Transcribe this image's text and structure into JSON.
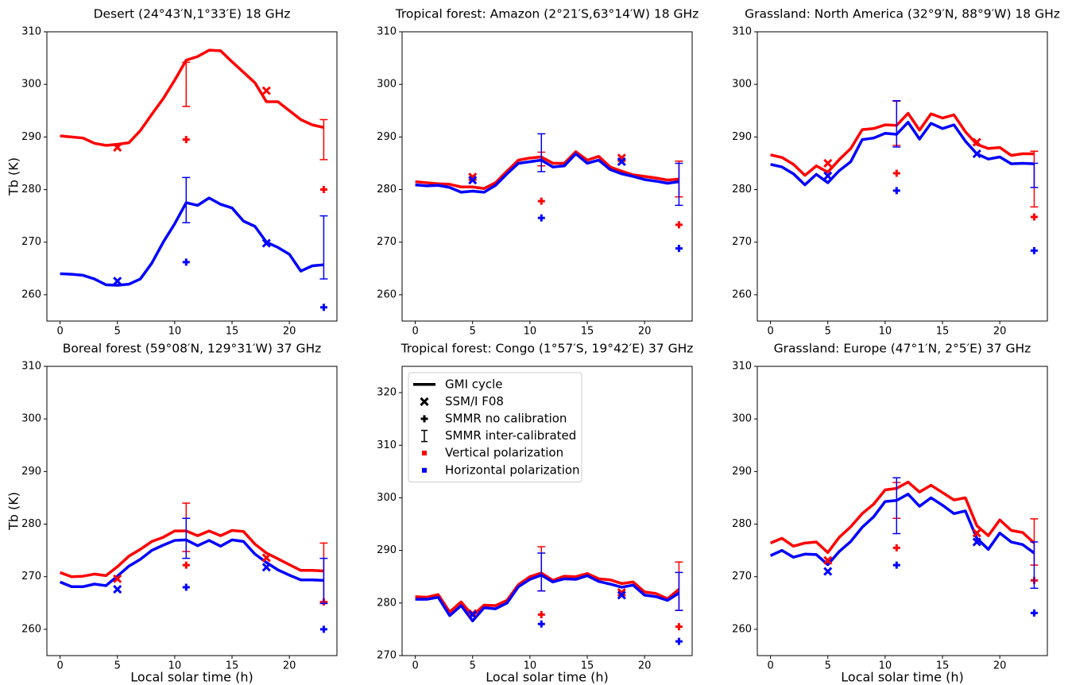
{
  "chart_data": [
    {
      "type": "line",
      "title": "Desert (24°43′N,1°33′E) 18 GHz",
      "ylabel": "Tb (K)",
      "x": [
        0,
        1,
        2,
        3,
        4,
        5,
        6,
        7,
        8,
        9,
        10,
        11,
        12,
        13,
        14,
        15,
        16,
        17,
        18,
        19,
        20,
        21,
        22,
        23
      ],
      "series": [
        {
          "color": "#ff0000",
          "values": [
            290.2,
            290.0,
            289.8,
            288.8,
            288.4,
            288.6,
            288.9,
            291.2,
            294.3,
            297.3,
            300.8,
            304.6,
            305.3,
            306.5,
            306.4,
            304.3,
            302.3,
            300.3,
            296.7,
            296.7,
            295.0,
            293.3,
            292.3,
            291.8
          ]
        },
        {
          "color": "#0000ff",
          "values": [
            264.0,
            263.9,
            263.7,
            263.0,
            261.9,
            261.8,
            262.0,
            263.0,
            266.0,
            270.0,
            273.5,
            277.5,
            277.0,
            278.4,
            277.2,
            276.5,
            274.0,
            273.0,
            270.0,
            269.0,
            267.7,
            264.5,
            265.5,
            265.7
          ]
        }
      ],
      "ssmi": {
        "x": [
          5,
          18
        ],
        "series": [
          {
            "color": "#ff0000",
            "values": [
              288.0,
              298.8
            ]
          },
          {
            "color": "#0000ff",
            "values": [
              262.6,
              269.8
            ]
          }
        ]
      },
      "smmr": {
        "x": [
          11,
          23
        ],
        "series": [
          {
            "color": "#ff0000",
            "values": [
              289.5,
              280.0
            ]
          },
          {
            "color": "#0000ff",
            "values": [
              266.2,
              257.6
            ]
          }
        ]
      },
      "smmr_cal": {
        "x": [
          11,
          23
        ],
        "series": [
          {
            "color": "#ff0000",
            "values": [
              300.0,
              289.5
            ],
            "errors": [
              4.2,
              3.8
            ]
          },
          {
            "color": "#0000ff",
            "values": [
              278.0,
              269.0
            ],
            "errors": [
              4.3,
              6.0
            ]
          }
        ]
      },
      "xlim": [
        -1.15,
        24.15
      ],
      "ylim": [
        255,
        310
      ],
      "xticks": [
        0,
        5,
        10,
        15,
        20
      ],
      "yticks": [
        260,
        270,
        280,
        290,
        300,
        310
      ]
    },
    {
      "type": "line",
      "title": "Tropical forest: Amazon (2°21′S,63°14′W) 18 GHz",
      "x": [
        0,
        1,
        2,
        3,
        4,
        5,
        6,
        7,
        8,
        9,
        10,
        11,
        12,
        13,
        14,
        15,
        16,
        17,
        18,
        19,
        20,
        21,
        22,
        23
      ],
      "series": [
        {
          "color": "#ff0000",
          "values": [
            281.5,
            281.3,
            281.1,
            281.0,
            280.5,
            280.5,
            280.2,
            281.3,
            283.5,
            285.6,
            286.0,
            286.2,
            285.0,
            285.0,
            287.2,
            285.6,
            286.3,
            284.3,
            283.5,
            282.8,
            282.5,
            282.2,
            281.8,
            282.0
          ]
        },
        {
          "color": "#0000ff",
          "values": [
            280.9,
            280.7,
            280.8,
            280.4,
            279.5,
            279.7,
            279.5,
            280.8,
            283.0,
            285.0,
            285.3,
            285.6,
            284.3,
            284.5,
            286.8,
            285.0,
            285.6,
            283.8,
            283.0,
            282.5,
            281.9,
            281.6,
            281.2,
            281.5
          ]
        }
      ],
      "ssmi": {
        "x": [
          5,
          18
        ],
        "series": [
          {
            "color": "#ff0000",
            "values": [
              282.4,
              286.0
            ]
          },
          {
            "color": "#0000ff",
            "values": [
              281.8,
              285.3
            ]
          }
        ]
      },
      "smmr": {
        "x": [
          11,
          23
        ],
        "series": [
          {
            "color": "#ff0000",
            "values": [
              277.8,
              273.3
            ]
          },
          {
            "color": "#0000ff",
            "values": [
              274.6,
              268.8
            ]
          }
        ]
      },
      "smmr_cal": {
        "x": [
          11,
          23
        ],
        "series": [
          {
            "color": "#ff0000",
            "values": [
              285.8,
              282.0
            ],
            "errors": [
              1.3,
              3.4
            ]
          },
          {
            "color": "#0000ff",
            "values": [
              287.0,
              281.0
            ],
            "errors": [
              3.6,
              4.0
            ]
          }
        ]
      },
      "xlim": [
        -1.15,
        24.15
      ],
      "ylim": [
        255,
        310
      ],
      "xticks": [
        0,
        5,
        10,
        15,
        20
      ],
      "yticks": [
        260,
        270,
        280,
        290,
        300,
        310
      ]
    },
    {
      "type": "line",
      "title": "Grassland: North America (32°9′N, 88°9′W) 18 GHz",
      "x": [
        0,
        1,
        2,
        3,
        4,
        5,
        6,
        7,
        8,
        9,
        10,
        11,
        12,
        13,
        14,
        15,
        16,
        17,
        18,
        19,
        20,
        21,
        22,
        23
      ],
      "series": [
        {
          "color": "#ff0000",
          "values": [
            286.6,
            286.1,
            284.8,
            282.7,
            284.5,
            283.3,
            285.7,
            287.8,
            291.4,
            291.6,
            292.3,
            292.2,
            294.5,
            291.3,
            294.4,
            293.6,
            294.2,
            291.0,
            288.6,
            287.8,
            288.0,
            286.5,
            286.8,
            286.8
          ]
        },
        {
          "color": "#0000ff",
          "values": [
            284.8,
            284.3,
            283.0,
            280.9,
            282.9,
            281.3,
            283.6,
            285.3,
            289.5,
            289.8,
            290.7,
            290.5,
            292.8,
            289.6,
            292.6,
            291.6,
            292.3,
            289.2,
            286.8,
            285.8,
            286.2,
            284.9,
            285.0,
            284.9
          ]
        }
      ],
      "ssmi": {
        "x": [
          5,
          18
        ],
        "series": [
          {
            "color": "#ff0000",
            "values": [
              285.0,
              289.0
            ]
          },
          {
            "color": "#0000ff",
            "values": [
              282.6,
              286.8
            ]
          }
        ]
      },
      "smmr": {
        "x": [
          11,
          23
        ],
        "series": [
          {
            "color": "#ff0000",
            "values": [
              283.1,
              274.8
            ]
          },
          {
            "color": "#0000ff",
            "values": [
              279.8,
              268.4
            ]
          }
        ]
      },
      "smmr_cal": {
        "x": [
          11,
          23
        ],
        "series": [
          {
            "color": "#ff0000",
            "values": [
              292.6,
              282.0
            ],
            "errors": [
              4.2,
              5.3
            ]
          },
          {
            "color": "#0000ff",
            "values": [
              292.5,
              282.7
            ],
            "errors": [
              4.4,
              2.3
            ]
          }
        ]
      },
      "xlim": [
        -1.15,
        24.15
      ],
      "ylim": [
        255,
        310
      ],
      "xticks": [
        0,
        5,
        10,
        15,
        20
      ],
      "yticks": [
        260,
        270,
        280,
        290,
        300,
        310
      ]
    },
    {
      "type": "line",
      "title": "Boreal forest (59°08′N, 129°31′W) 37 GHz",
      "ylabel": "Tb (K)",
      "xlabel": "Local solar time (h)",
      "x": [
        0,
        1,
        2,
        3,
        4,
        5,
        6,
        7,
        8,
        9,
        10,
        11,
        12,
        13,
        14,
        15,
        16,
        17,
        18,
        19,
        20,
        21,
        22,
        23
      ],
      "series": [
        {
          "color": "#ff0000",
          "values": [
            270.8,
            270.0,
            270.1,
            270.5,
            270.2,
            271.9,
            273.9,
            275.2,
            276.7,
            277.5,
            278.7,
            278.7,
            277.8,
            278.7,
            277.8,
            278.8,
            278.6,
            276.2,
            274.5,
            273.4,
            272.3,
            271.2,
            271.2,
            271.1
          ]
        },
        {
          "color": "#0000ff",
          "values": [
            269.0,
            268.1,
            268.1,
            268.6,
            268.3,
            270.1,
            272.0,
            273.3,
            275.0,
            276.0,
            276.9,
            277.0,
            275.9,
            276.9,
            275.8,
            277.0,
            276.7,
            274.3,
            272.7,
            271.3,
            270.3,
            269.4,
            269.4,
            269.3
          ]
        }
      ],
      "ssmi": {
        "x": [
          5,
          18
        ],
        "series": [
          {
            "color": "#ff0000",
            "values": [
              269.6,
              273.6
            ]
          },
          {
            "color": "#0000ff",
            "values": [
              267.6,
              271.8
            ]
          }
        ]
      },
      "smmr": {
        "x": [
          11,
          23
        ],
        "series": [
          {
            "color": "#ff0000",
            "values": [
              272.2,
              265.2
            ]
          },
          {
            "color": "#0000ff",
            "values": [
              268.0,
              260.0
            ]
          }
        ]
      },
      "smmr_cal": {
        "x": [
          11,
          23
        ],
        "series": [
          {
            "color": "#ff0000",
            "values": [
              279.4,
              270.8
            ],
            "errors": [
              4.6,
              5.6
            ]
          },
          {
            "color": "#0000ff",
            "values": [
              277.3,
              269.2
            ],
            "errors": [
              3.8,
              4.3
            ]
          }
        ]
      },
      "xlim": [
        -1.15,
        24.15
      ],
      "ylim": [
        255,
        310
      ],
      "xticks": [
        0,
        5,
        10,
        15,
        20
      ],
      "yticks": [
        260,
        270,
        280,
        290,
        300,
        310
      ]
    },
    {
      "type": "line",
      "title": "Tropical forest: Congo (1°57′S, 19°42′E) 37 GHz",
      "xlabel": "Local solar time (h)",
      "x": [
        0,
        1,
        2,
        3,
        4,
        5,
        6,
        7,
        8,
        9,
        10,
        11,
        12,
        13,
        14,
        15,
        16,
        17,
        18,
        19,
        20,
        21,
        22,
        23
      ],
      "series": [
        {
          "color": "#ff0000",
          "values": [
            281.2,
            281.1,
            281.6,
            278.3,
            280.2,
            277.6,
            279.6,
            279.5,
            280.5,
            283.5,
            285.0,
            285.7,
            284.3,
            285.1,
            285.0,
            285.6,
            284.6,
            284.4,
            283.7,
            284.0,
            282.1,
            281.8,
            280.8,
            282.6
          ]
        },
        {
          "color": "#0000ff",
          "values": [
            280.7,
            280.7,
            281.1,
            277.6,
            279.5,
            276.6,
            279.1,
            278.9,
            280.0,
            283.1,
            284.5,
            285.3,
            284.0,
            284.6,
            284.5,
            285.2,
            284.1,
            283.6,
            283.0,
            283.4,
            281.5,
            281.2,
            280.5,
            281.9
          ]
        }
      ],
      "ssmi": {
        "x": [
          5,
          18
        ],
        "series": [
          {
            "color": "#ff0000",
            "values": [
              278.0,
              282.0
            ]
          },
          {
            "color": "#0000ff",
            "values": [
              277.8,
              281.5
            ]
          }
        ]
      },
      "smmr": {
        "x": [
          11,
          23
        ],
        "series": [
          {
            "color": "#ff0000",
            "values": [
              277.8,
              275.5
            ]
          },
          {
            "color": "#0000ff",
            "values": [
              276.0,
              272.7
            ]
          }
        ]
      },
      "smmr_cal": {
        "x": [
          11,
          23
        ],
        "series": [
          {
            "color": "#ff0000",
            "values": [
              286.5,
              283.2
            ],
            "errors": [
              4.2,
              4.6
            ]
          },
          {
            "color": "#0000ff",
            "values": [
              285.9,
              282.2
            ],
            "errors": [
              3.6,
              3.6
            ]
          }
        ]
      },
      "xlim": [
        -1.15,
        24.15
      ],
      "ylim": [
        270,
        325
      ],
      "xticks": [
        0,
        5,
        10,
        15,
        20
      ],
      "yticks": [
        270,
        280,
        290,
        300,
        310,
        320
      ],
      "legend": {
        "loc": "upper left",
        "items": [
          {
            "label": "GMI cycle",
            "marker": "line",
            "color": "#000000"
          },
          {
            "label": "SSM/I F08",
            "marker": "x",
            "color": "#000000"
          },
          {
            "label": "SMMR no calibration",
            "marker": "plus",
            "color": "#000000"
          },
          {
            "label": "SMMR inter-calibrated",
            "marker": "errorbar",
            "color": "#000000"
          },
          {
            "label": "Vertical polarization",
            "marker": "square",
            "color": "#ff0000"
          },
          {
            "label": "Horizontal polarization",
            "marker": "square",
            "color": "#0000ff"
          }
        ]
      }
    },
    {
      "type": "line",
      "title": "Grassland: Europe (47°1′N, 2°5′E) 37 GHz",
      "xlabel": "Local solar time (h)",
      "x": [
        0,
        1,
        2,
        3,
        4,
        5,
        6,
        7,
        8,
        9,
        10,
        11,
        12,
        13,
        14,
        15,
        16,
        17,
        18,
        19,
        20,
        21,
        22,
        23
      ],
      "series": [
        {
          "color": "#ff0000",
          "values": [
            276.4,
            277.3,
            275.8,
            276.4,
            276.6,
            274.6,
            277.5,
            279.5,
            282.0,
            283.8,
            286.5,
            286.8,
            288.0,
            286.1,
            287.4,
            286.0,
            284.6,
            285.0,
            279.7,
            277.8,
            280.8,
            278.8,
            278.4,
            276.4
          ]
        },
        {
          "color": "#0000ff",
          "values": [
            274.0,
            275.0,
            273.7,
            274.3,
            274.2,
            272.3,
            274.8,
            276.7,
            279.4,
            281.4,
            284.3,
            284.5,
            285.7,
            283.4,
            285.0,
            283.6,
            282.0,
            282.5,
            277.3,
            275.2,
            278.3,
            276.6,
            276.1,
            274.5
          ]
        }
      ],
      "ssmi": {
        "x": [
          5,
          18
        ],
        "series": [
          {
            "color": "#ff0000",
            "values": [
              273.1,
              278.3
            ]
          },
          {
            "color": "#0000ff",
            "values": [
              271.0,
              276.6
            ]
          }
        ]
      },
      "smmr": {
        "x": [
          11,
          23
        ],
        "series": [
          {
            "color": "#ff0000",
            "values": [
              275.5,
              269.3
            ]
          },
          {
            "color": "#0000ff",
            "values": [
              272.2,
              263.1
            ]
          }
        ]
      },
      "smmr_cal": {
        "x": [
          11,
          23
        ],
        "series": [
          {
            "color": "#ff0000",
            "values": [
              284.5,
              276.6
            ],
            "errors": [
              3.4,
              4.4
            ]
          },
          {
            "color": "#0000ff",
            "values": [
              283.5,
              272.2
            ],
            "errors": [
              5.3,
              4.4
            ]
          }
        ]
      },
      "xlim": [
        -1.15,
        24.15
      ],
      "ylim": [
        255,
        310
      ],
      "xticks": [
        0,
        5,
        10,
        15,
        20
      ],
      "yticks": [
        260,
        270,
        280,
        290,
        300,
        310
      ]
    }
  ]
}
